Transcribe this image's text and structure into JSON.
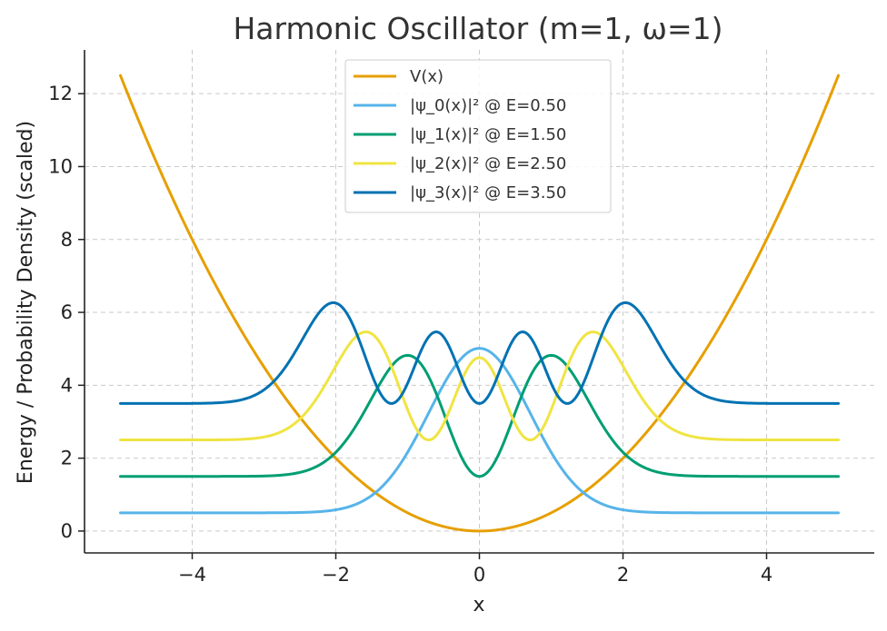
{
  "chart_data": {
    "type": "line",
    "title": "Harmonic Oscillator (m=1, ω=1)",
    "xlabel": "x",
    "ylabel": "Energy / Probability Density (scaled)",
    "xlim": [
      -5.5,
      5.5
    ],
    "ylim": [
      -0.6,
      13.2
    ],
    "x_range": [
      -5,
      5
    ],
    "xticks": [
      -4,
      -2,
      0,
      2,
      4
    ],
    "yticks": [
      0,
      2,
      4,
      6,
      8,
      10,
      12
    ],
    "xtick_labels": [
      "−4",
      "−2",
      "0",
      "2",
      "4"
    ],
    "ytick_labels": [
      "0",
      "2",
      "4",
      "6",
      "8",
      "10",
      "12"
    ],
    "grid": true,
    "legend_position": "top-center",
    "series": [
      {
        "name": "V(x)",
        "kind": "potential",
        "color": "#E69F00"
      },
      {
        "name": "|ψ_0(x)|² @ E=0.50",
        "kind": "density",
        "n": 0,
        "energy": 0.5,
        "color": "#56B4E9"
      },
      {
        "name": "|ψ_1(x)|² @ E=1.50",
        "kind": "density",
        "n": 1,
        "energy": 1.5,
        "color": "#009E73"
      },
      {
        "name": "|ψ_2(x)|² @ E=2.50",
        "kind": "density",
        "n": 2,
        "energy": 2.5,
        "color": "#F0E442"
      },
      {
        "name": "|ψ_3(x)|² @ E=3.50",
        "kind": "density",
        "n": 3,
        "energy": 3.5,
        "color": "#0072B2"
      }
    ],
    "density_scale": 8
  }
}
